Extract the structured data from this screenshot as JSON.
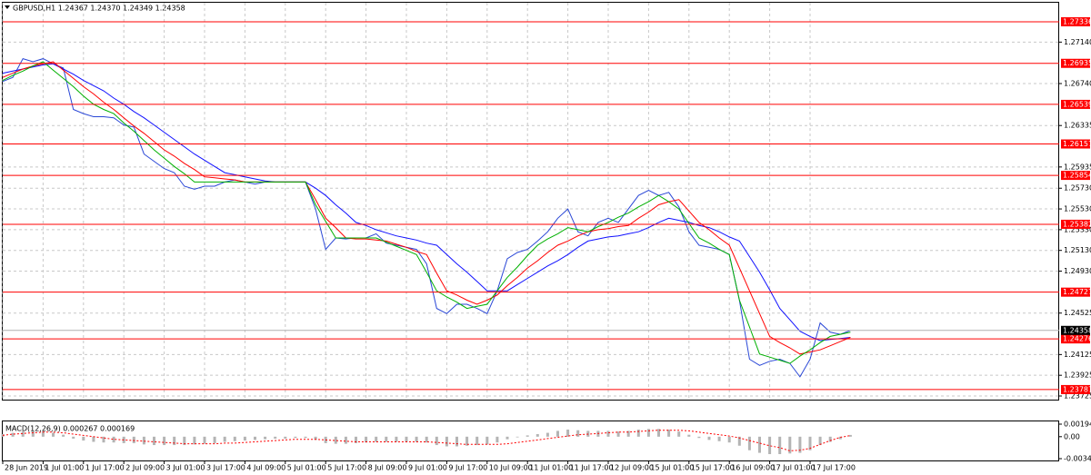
{
  "chart_data": [
    {
      "type": "line",
      "title": "GBPUSD,H1  1.24367 1.24370 1.24349 1.24358",
      "categories": [
        "28 Jun 2019",
        null,
        null,
        null,
        "1 Jul 01:00",
        null,
        null,
        null,
        "1 Jul 17:00",
        null,
        null,
        null,
        "2 Jul 09:00",
        null,
        null,
        null,
        "3 Jul 01:00",
        null,
        null,
        null,
        "3 Jul 17:00",
        null,
        null,
        null,
        "4 Jul 09:00",
        null,
        null,
        null,
        "5 Jul 01:00",
        null,
        null,
        null,
        "5 Jul 17:00",
        null,
        null,
        null,
        "8 Jul 09:00",
        null,
        null,
        null,
        "9 Jul 01:00",
        null,
        null,
        null,
        "9 Jul 17:00",
        null,
        null,
        null,
        "10 Jul 09:00",
        null,
        null,
        null,
        "11 Jul 01:00",
        null,
        null,
        null,
        "11 Jul 17:00",
        null,
        null,
        null,
        "12 Jul 09:00",
        null,
        null,
        null,
        "15 Jul 01:00",
        null,
        null,
        null,
        "15 Jul 17:00",
        null,
        null,
        null,
        "16 Jul 09:00",
        null,
        null,
        null,
        "17 Jul 01:00",
        null,
        null,
        null,
        "17 Jul 17:00",
        null,
        null,
        null,
        null
      ],
      "series": [
        {
          "color": "#2a47d6",
          "values": [
            1.2676,
            1.268,
            1.2698,
            1.2695,
            1.2698,
            1.2693,
            1.2689,
            1.2649,
            1.2645,
            1.2642,
            1.2642,
            1.2641,
            1.2634,
            1.2632,
            1.2606,
            1.2599,
            1.2592,
            1.2588,
            1.2575,
            1.2572,
            1.2575,
            1.2575,
            1.2579,
            1.2581,
            1.2579,
            1.2577,
            1.2579,
            1.2579,
            1.2579,
            1.2579,
            1.2579,
            1.2553,
            1.2514,
            1.2525,
            1.2524,
            1.2525,
            1.2525,
            1.2529,
            1.252,
            1.2518,
            1.2516,
            1.2514,
            1.25,
            1.2457,
            1.2452,
            1.2461,
            1.2461,
            1.2457,
            1.2452,
            1.2474,
            1.2505,
            1.2511,
            1.2514,
            1.2522,
            1.2531,
            1.2544,
            1.2553,
            1.2531,
            1.2527,
            1.254,
            1.2544,
            1.254,
            1.2553,
            1.2566,
            1.2571,
            1.2566,
            1.2569,
            1.2555,
            1.2531,
            1.2518,
            1.2516,
            1.2514,
            1.2509,
            1.2465,
            1.2408,
            1.2402,
            1.2406,
            1.2408,
            1.2404,
            1.2391,
            1.2408,
            1.2443,
            1.2434,
            1.2432,
            1.24358
          ]
        },
        {
          "color": "#1010ff",
          "values": [
            1.2684,
            1.2686,
            1.2688,
            1.269,
            1.2692,
            1.2693,
            1.2688,
            1.2683,
            1.2677,
            1.2672,
            1.2667,
            1.266,
            1.2654,
            1.2647,
            1.2641,
            1.2634,
            1.2627,
            1.262,
            1.2613,
            1.2606,
            1.26,
            1.2594,
            1.2588,
            1.2586,
            1.2584,
            1.2582,
            1.258,
            1.2579,
            1.2579,
            1.2579,
            1.2579,
            1.2573,
            1.2566,
            1.2557,
            1.2549,
            1.254,
            1.2537,
            1.2533,
            1.253,
            1.2527,
            1.2525,
            1.2523,
            1.252,
            1.2518,
            1.2509,
            1.25,
            1.2492,
            1.2483,
            1.2474,
            1.2474,
            1.2474,
            1.248,
            1.2486,
            1.2492,
            1.2498,
            1.2503,
            1.2509,
            1.2516,
            1.2522,
            1.2524,
            1.2526,
            1.2527,
            1.2529,
            1.2531,
            1.2535,
            1.254,
            1.2544,
            1.2542,
            1.254,
            1.2537,
            1.2535,
            1.2531,
            1.2526,
            1.2522,
            1.2507,
            1.2492,
            1.2475,
            1.2457,
            1.2446,
            1.2435,
            1.243,
            1.2426,
            1.2427,
            1.2428,
            1.2429
          ]
        },
        {
          "color": "#ff0000",
          "values": [
            1.268,
            1.2684,
            1.2688,
            1.2691,
            1.2693,
            1.2695,
            1.2687,
            1.2679,
            1.2671,
            1.2664,
            1.2656,
            1.2649,
            1.2641,
            1.2633,
            1.2626,
            1.2618,
            1.261,
            1.2604,
            1.2597,
            1.2591,
            1.2584,
            1.2583,
            1.2582,
            1.2581,
            1.2579,
            1.2579,
            1.2579,
            1.2579,
            1.2579,
            1.2579,
            1.2579,
            1.2562,
            1.2544,
            1.2535,
            1.2525,
            1.2524,
            1.2524,
            1.2523,
            1.2522,
            1.2519,
            1.2516,
            1.2512,
            1.2509,
            1.2491,
            1.2474,
            1.247,
            1.2465,
            1.2461,
            1.2465,
            1.247,
            1.2479,
            1.2487,
            1.2496,
            1.2503,
            1.2511,
            1.2518,
            1.2522,
            1.2527,
            1.2531,
            1.2533,
            1.2534,
            1.2536,
            1.2537,
            1.2544,
            1.255,
            1.2557,
            1.256,
            1.2562,
            1.2551,
            1.254,
            1.2533,
            1.2525,
            1.2518,
            1.2496,
            1.2474,
            1.2452,
            1.243,
            1.2424,
            1.2419,
            1.2413,
            1.2415,
            1.2417,
            1.2421,
            1.2425,
            1.2429
          ]
        },
        {
          "color": "#00b000",
          "values": [
            1.2677,
            1.2682,
            1.2686,
            1.2691,
            1.2695,
            1.2687,
            1.2679,
            1.2671,
            1.2662,
            1.2654,
            1.2649,
            1.2645,
            1.2636,
            1.2628,
            1.2619,
            1.261,
            1.2602,
            1.2594,
            1.2587,
            1.2579,
            1.2579,
            1.2579,
            1.2579,
            1.2579,
            1.2579,
            1.2579,
            1.2579,
            1.2579,
            1.2579,
            1.2579,
            1.2579,
            1.2557,
            1.2541,
            1.2525,
            1.2525,
            1.2525,
            1.2525,
            1.2525,
            1.2521,
            1.2517,
            1.2513,
            1.2509,
            1.2492,
            1.2474,
            1.2468,
            1.2463,
            1.2457,
            1.2459,
            1.2461,
            1.2474,
            1.2487,
            1.2497,
            1.2508,
            1.2518,
            1.2524,
            1.2529,
            1.2535,
            1.2533,
            1.2531,
            1.2536,
            1.254,
            1.2545,
            1.2549,
            1.2555,
            1.256,
            1.2566,
            1.256,
            1.2553,
            1.2539,
            1.2525,
            1.252,
            1.2514,
            1.2509,
            1.2465,
            1.2439,
            1.2413,
            1.241,
            1.2407,
            1.2404,
            1.2411,
            1.2417,
            1.2424,
            1.243,
            1.2432,
            1.2434
          ]
        }
      ],
      "ylim": [
        1.2369,
        1.2752
      ],
      "yticks": [
        {
          "value": 1.2714,
          "label": "1.27140"
        },
        {
          "value": 1.2674,
          "label": "1.26740"
        },
        1.26335,
        1.25935,
        {
          "value": 1.2573,
          "label": "1.25730"
        },
        {
          "value": 1.2553,
          "label": "1.25530"
        },
        {
          "value": 1.2533,
          "label": "1.25330"
        },
        {
          "value": 1.2513,
          "label": "1.25130"
        },
        {
          "value": 1.2493,
          "label": "1.24930"
        },
        1.24525,
        1.24125,
        1.23925,
        1.23725
      ],
      "grid": true,
      "levels": [
        1.27336,
        1.26935,
        1.26539,
        1.26157,
        1.25854,
        1.25382,
        1.24727,
        1.24276,
        1.23787
      ],
      "level_color": "#ff0000",
      "current_price": 1.24358
    },
    {
      "type": "macd",
      "title": "MACD(12,26,9) 0.000267 0.000169",
      "histogram": [
        0.0004,
        0.0006,
        0.0008,
        0.0009,
        0.0008,
        0.0006,
        0.0003,
        -0.0003,
        -0.0006,
        -0.0008,
        -0.0009,
        -0.0009,
        -0.001,
        -0.001,
        -0.0012,
        -0.0013,
        -0.0013,
        -0.0013,
        -0.0013,
        -0.0012,
        -0.0011,
        -0.001,
        -0.0008,
        -0.0007,
        -0.0006,
        -0.0005,
        -0.0004,
        -0.0003,
        -0.0003,
        -0.0002,
        -0.0002,
        -0.0005,
        -0.001,
        -0.0011,
        -0.0011,
        -0.001,
        -0.0009,
        -0.0008,
        -0.0008,
        -0.0008,
        -0.0008,
        -0.0008,
        -0.0009,
        -0.0013,
        -0.0015,
        -0.0015,
        -0.0014,
        -0.0013,
        -0.0012,
        -0.0009,
        -0.0004,
        -0.0001,
        0.0002,
        0.0004,
        0.0006,
        0.0009,
        0.0011,
        0.001,
        0.0009,
        0.0009,
        0.0009,
        0.0008,
        0.0009,
        0.0011,
        0.0012,
        0.0012,
        0.0011,
        0.0008,
        0.0003,
        -0.0002,
        -0.0005,
        -0.0007,
        -0.0009,
        -0.0014,
        -0.0021,
        -0.0025,
        -0.0027,
        -0.0027,
        -0.0026,
        -0.0025,
        -0.0021,
        -0.0013,
        -0.0008,
        -0.0004,
        0.000267
      ],
      "histogram_color": "#b4b4b4",
      "signal": [
        0.0002,
        0.0004,
        0.0005,
        0.0006,
        0.0007,
        0.0007,
        0.0006,
        0.0004,
        0.0002,
        0.0,
        -0.0002,
        -0.0004,
        -0.0005,
        -0.0006,
        -0.0007,
        -0.0008,
        -0.0009,
        -0.001,
        -0.0011,
        -0.0011,
        -0.0011,
        -0.0011,
        -0.001,
        -0.001,
        -0.0009,
        -0.0008,
        -0.0007,
        -0.0006,
        -0.0005,
        -0.0004,
        -0.0004,
        -0.0004,
        -0.0005,
        -0.0006,
        -0.0007,
        -0.0008,
        -0.0008,
        -0.0008,
        -0.0008,
        -0.0008,
        -0.0008,
        -0.0008,
        -0.0008,
        -0.0009,
        -0.001,
        -0.0011,
        -0.0012,
        -0.0012,
        -0.0012,
        -0.0012,
        -0.0011,
        -0.0009,
        -0.0007,
        -0.0005,
        -0.0003,
        -0.0001,
        0.0001,
        0.0003,
        0.0004,
        0.0005,
        0.0006,
        0.0007,
        0.0007,
        0.0008,
        0.0009,
        0.001,
        0.001,
        0.001,
        0.0009,
        0.0007,
        0.0005,
        0.0003,
        0.0001,
        -0.0002,
        -0.0006,
        -0.001,
        -0.0014,
        -0.0017,
        -0.0022,
        -0.0021,
        -0.0018,
        -0.0012,
        -0.0006,
        -0.0001,
        0.000169
      ],
      "signal_color": "#ff0000",
      "ylim": [
        -0.003404,
        0.001944
      ],
      "yticks": [
        0.001944,
        {
          "value": 0,
          "label": "0.00"
        },
        -0.003404
      ]
    }
  ]
}
